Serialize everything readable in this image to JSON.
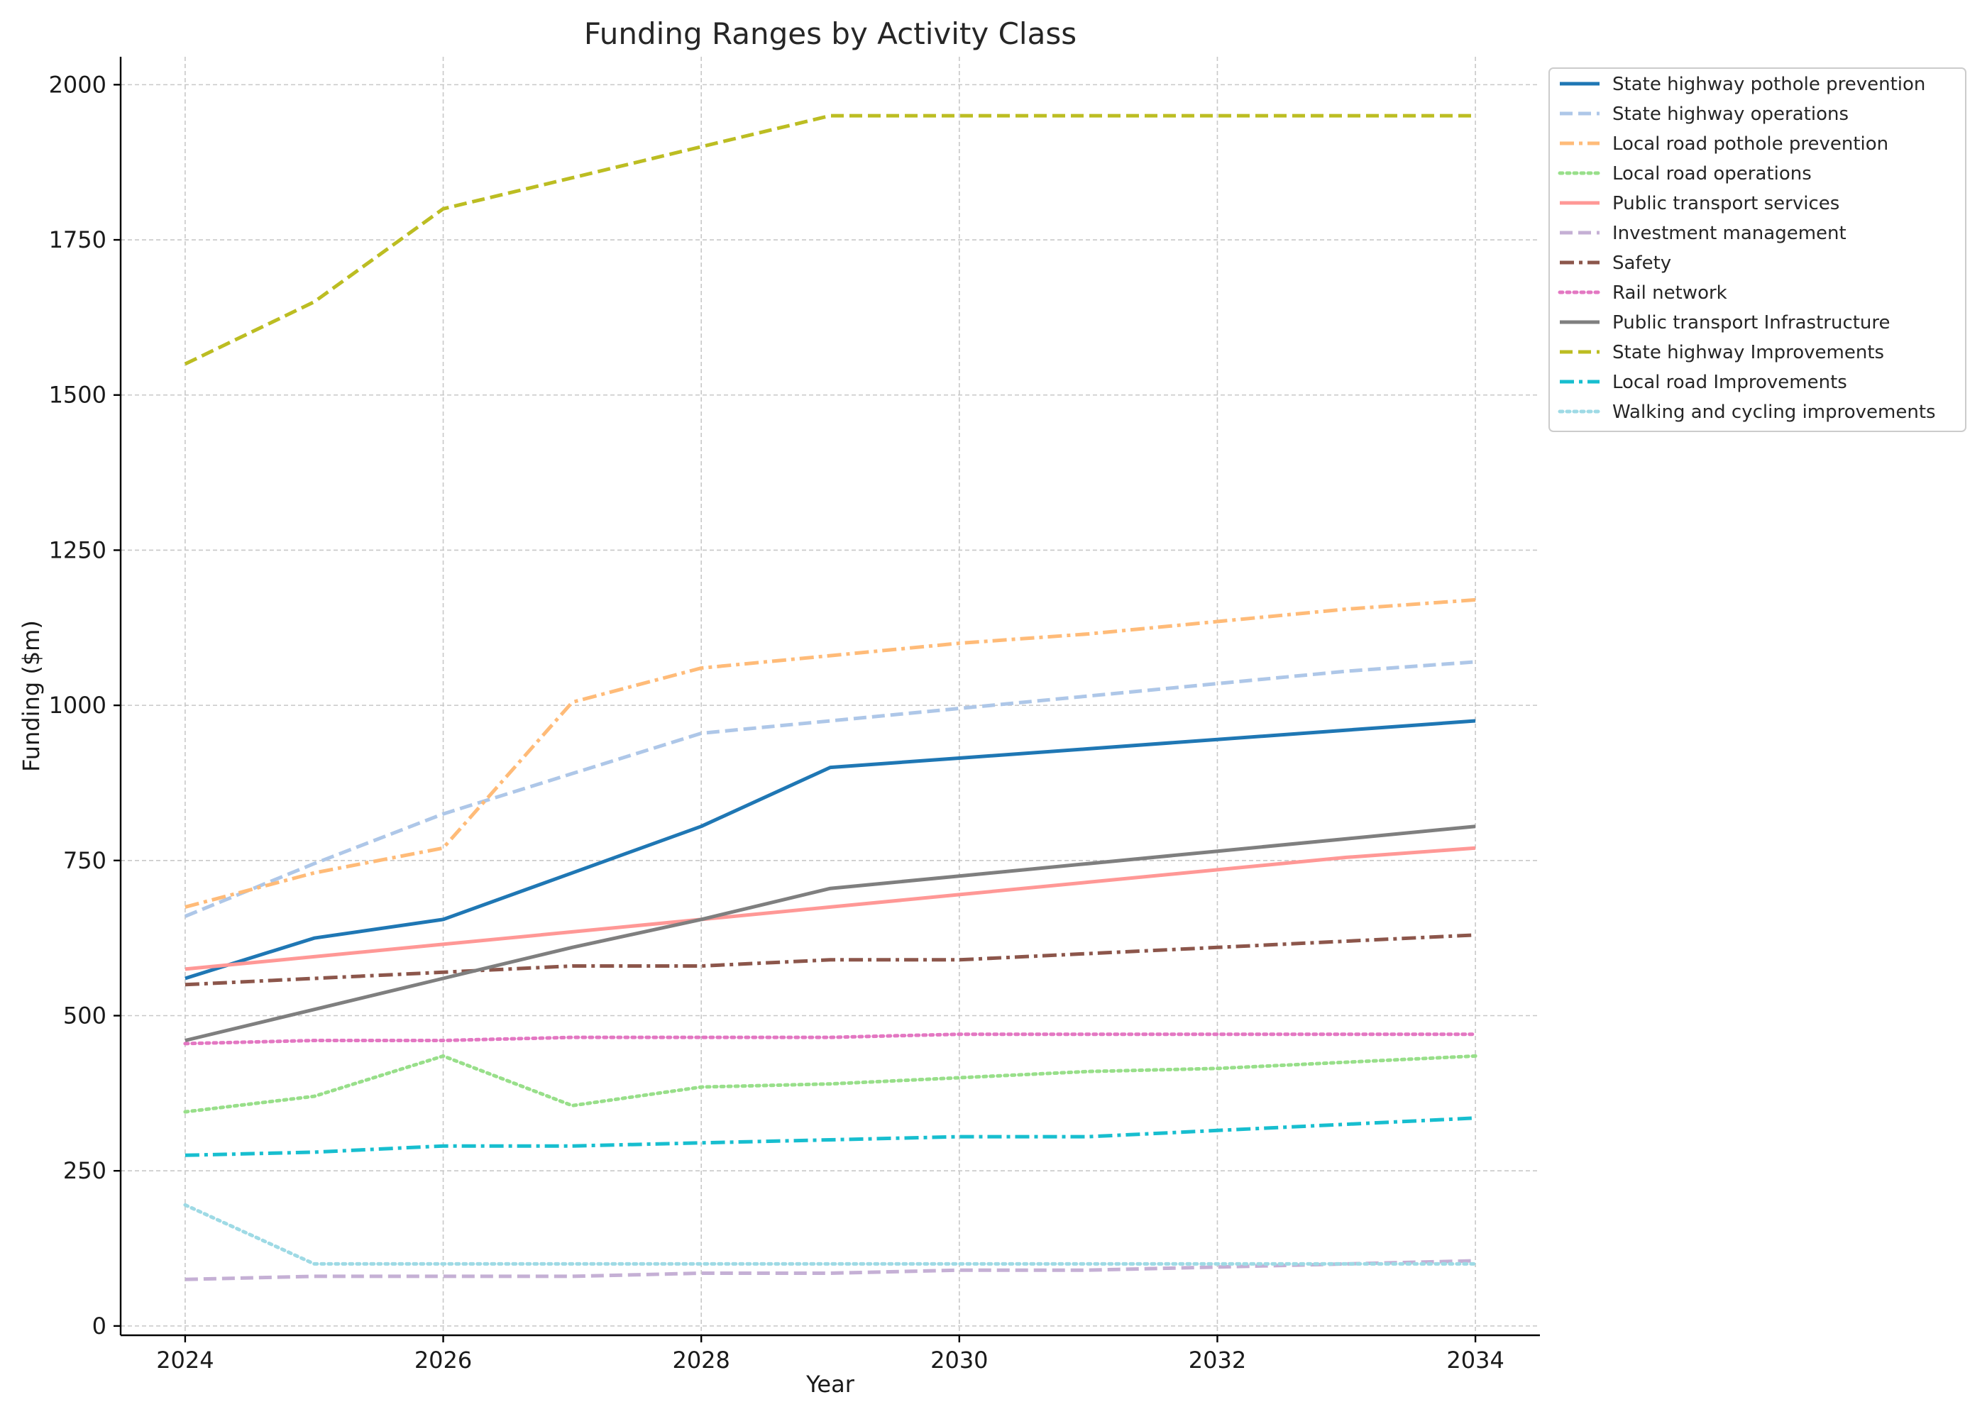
{
  "chart_data": {
    "type": "line",
    "title": "Funding Ranges by Activity Class",
    "xlabel": "Year",
    "ylabel": "Funding ($m)",
    "xlim": [
      2023.5,
      2034.5
    ],
    "ylim": [
      -15,
      2045
    ],
    "xticks": [
      2024,
      2026,
      2028,
      2030,
      2032,
      2034
    ],
    "yticks": [
      0,
      250,
      500,
      750,
      1000,
      1250,
      1500,
      1750,
      2000
    ],
    "grid": true,
    "legend_position": "outside top-right",
    "x": [
      2024,
      2025,
      2026,
      2027,
      2028,
      2029,
      2030,
      2031,
      2032,
      2033,
      2034
    ],
    "series": [
      {
        "name": "State highway pothole prevention",
        "color": "#1f77b4",
        "dash": "solid",
        "values": [
          560,
          625,
          655,
          730,
          805,
          900,
          915,
          930,
          945,
          960,
          975
        ]
      },
      {
        "name": "State highway operations",
        "color": "#aec7e8",
        "dash": "dashed",
        "values": [
          660,
          745,
          825,
          890,
          955,
          975,
          995,
          1015,
          1035,
          1055,
          1070
        ]
      },
      {
        "name": "Local road pothole prevention",
        "color": "#ffbb78",
        "dash": "dashdot",
        "values": [
          675,
          730,
          770,
          1005,
          1060,
          1080,
          1100,
          1115,
          1135,
          1155,
          1170
        ]
      },
      {
        "name": "Local road operations",
        "color": "#98df8a",
        "dash": "dotted",
        "values": [
          345,
          370,
          435,
          355,
          385,
          390,
          400,
          410,
          415,
          425,
          435
        ]
      },
      {
        "name": "Public transport services",
        "color": "#ff9896",
        "dash": "solid",
        "values": [
          575,
          595,
          615,
          635,
          655,
          675,
          695,
          715,
          735,
          755,
          770
        ]
      },
      {
        "name": "Investment management",
        "color": "#c5b0d5",
        "dash": "dashed",
        "values": [
          75,
          80,
          80,
          80,
          85,
          85,
          90,
          90,
          95,
          100,
          105
        ]
      },
      {
        "name": "Safety",
        "color": "#8c564b",
        "dash": "dashdot",
        "values": [
          550,
          560,
          570,
          580,
          580,
          590,
          590,
          600,
          610,
          620,
          630
        ]
      },
      {
        "name": "Rail network",
        "color": "#e377c2",
        "dash": "dotted",
        "values": [
          455,
          460,
          460,
          465,
          465,
          465,
          470,
          470,
          470,
          470,
          470
        ]
      },
      {
        "name": "Public transport Infrastructure",
        "color": "#7f7f7f",
        "dash": "solid",
        "values": [
          460,
          510,
          560,
          610,
          655,
          705,
          725,
          745,
          765,
          785,
          805
        ]
      },
      {
        "name": "State highway Improvements",
        "color": "#bcbd22",
        "dash": "dashed",
        "values": [
          1550,
          1650,
          1800,
          1850,
          1900,
          1950,
          1950,
          1950,
          1950,
          1950,
          1950
        ]
      },
      {
        "name": "Local road Improvements",
        "color": "#17becf",
        "dash": "dashdot",
        "values": [
          275,
          280,
          290,
          290,
          295,
          300,
          305,
          305,
          315,
          325,
          335
        ]
      },
      {
        "name": "Walking and cycling improvements",
        "color": "#9edae5",
        "dash": "dotted",
        "values": [
          195,
          100,
          100,
          100,
          100,
          100,
          100,
          100,
          100,
          100,
          100
        ]
      }
    ]
  }
}
